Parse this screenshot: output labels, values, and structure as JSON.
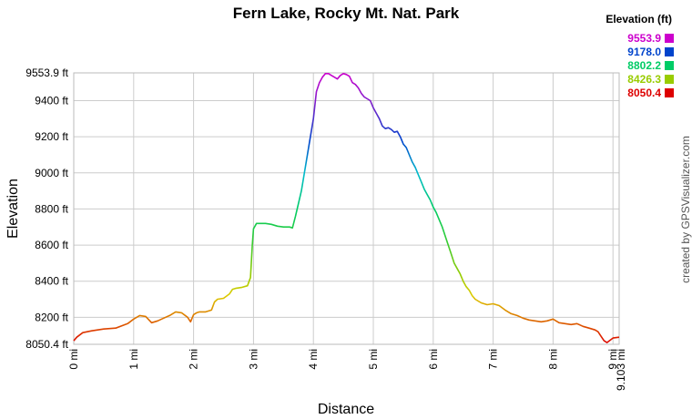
{
  "chart_data": {
    "type": "line",
    "title": "Fern Lake, Rocky Mt. Nat. Park",
    "xlabel": "Distance",
    "ylabel": "Elevation",
    "credit": "created by GPSVisualizer.com",
    "xlim": [
      0,
      9.103
    ],
    "ylim": [
      8050.4,
      9553.9
    ],
    "x_ticks": [
      {
        "value": 0,
        "label": "0 mi"
      },
      {
        "value": 1,
        "label": "1 mi"
      },
      {
        "value": 2,
        "label": "2 mi"
      },
      {
        "value": 3,
        "label": "3 mi"
      },
      {
        "value": 4,
        "label": "4 mi"
      },
      {
        "value": 5,
        "label": "5 mi"
      },
      {
        "value": 6,
        "label": "6 mi"
      },
      {
        "value": 7,
        "label": "7 mi"
      },
      {
        "value": 8,
        "label": "8 mi"
      },
      {
        "value": 9,
        "label": "9 mi"
      },
      {
        "value": 9.103,
        "label": "9.103 mi"
      }
    ],
    "y_ticks": [
      {
        "value": 8050.4,
        "label": "8050.4 ft"
      },
      {
        "value": 8200,
        "label": "8200 ft"
      },
      {
        "value": 8400,
        "label": "8400 ft"
      },
      {
        "value": 8600,
        "label": "8600 ft"
      },
      {
        "value": 8800,
        "label": "8800 ft"
      },
      {
        "value": 9000,
        "label": "9000 ft"
      },
      {
        "value": 9200,
        "label": "9200 ft"
      },
      {
        "value": 9400,
        "label": "9400 ft"
      },
      {
        "value": 9553.9,
        "label": "9553.9 ft"
      }
    ],
    "grid": true,
    "legend": {
      "title": "Elevation (ft)",
      "placement": "top-right",
      "entries": [
        {
          "label": "9553.9",
          "color": "#cc00cc"
        },
        {
          "label": "9178.0",
          "color": "#0044cc"
        },
        {
          "label": "8802.2",
          "color": "#00cc66"
        },
        {
          "label": "8426.3",
          "color": "#99cc00"
        },
        {
          "label": "8050.4",
          "color": "#dd0000"
        }
      ]
    },
    "series": [
      {
        "x": [
          0,
          0.05,
          0.15,
          0.3,
          0.5,
          0.7,
          0.9,
          1.0,
          1.1,
          1.2,
          1.3,
          1.4,
          1.5,
          1.6,
          1.7,
          1.8,
          1.9,
          1.95,
          2.0,
          2.05,
          2.1,
          2.2,
          2.3,
          2.35,
          2.4,
          2.5,
          2.6,
          2.65,
          2.7,
          2.8,
          2.9,
          2.95,
          2.98,
          3.0,
          3.05,
          3.1,
          3.2,
          3.3,
          3.4,
          3.5,
          3.6,
          3.65,
          3.7,
          3.8,
          3.9,
          4.0,
          4.05,
          4.1,
          4.15,
          4.2,
          4.25,
          4.3,
          4.35,
          4.4,
          4.45,
          4.5,
          4.55,
          4.6,
          4.65,
          4.7,
          4.75,
          4.8,
          4.85,
          4.9,
          4.95,
          5.0,
          5.05,
          5.1,
          5.15,
          5.2,
          5.25,
          5.3,
          5.35,
          5.4,
          5.45,
          5.5,
          5.55,
          5.6,
          5.65,
          5.7,
          5.75,
          5.8,
          5.85,
          5.9,
          5.95,
          6.0,
          6.05,
          6.1,
          6.15,
          6.2,
          6.25,
          6.3,
          6.35,
          6.4,
          6.45,
          6.5,
          6.55,
          6.6,
          6.65,
          6.7,
          6.8,
          6.9,
          7.0,
          7.1,
          7.2,
          7.3,
          7.4,
          7.5,
          7.6,
          7.7,
          7.8,
          7.9,
          8.0,
          8.1,
          8.2,
          8.3,
          8.4,
          8.5,
          8.6,
          8.7,
          8.75,
          8.8,
          8.85,
          8.9,
          9.0,
          9.103
        ],
        "y": [
          8070,
          8090,
          8115,
          8125,
          8135,
          8140,
          8165,
          8190,
          8210,
          8205,
          8170,
          8180,
          8195,
          8210,
          8230,
          8225,
          8200,
          8175,
          8215,
          8225,
          8230,
          8230,
          8240,
          8285,
          8300,
          8305,
          8330,
          8355,
          8360,
          8365,
          8375,
          8420,
          8600,
          8690,
          8720,
          8720,
          8720,
          8715,
          8705,
          8700,
          8700,
          8695,
          8760,
          8900,
          9100,
          9300,
          9450,
          9500,
          9530,
          9550,
          9550,
          9540,
          9530,
          9520,
          9540,
          9550,
          9545,
          9535,
          9500,
          9490,
          9470,
          9440,
          9420,
          9410,
          9400,
          9360,
          9330,
          9300,
          9260,
          9245,
          9250,
          9240,
          9225,
          9230,
          9200,
          9160,
          9140,
          9100,
          9060,
          9030,
          8990,
          8950,
          8910,
          8880,
          8850,
          8810,
          8780,
          8740,
          8700,
          8650,
          8600,
          8550,
          8500,
          8470,
          8440,
          8400,
          8370,
          8350,
          8320,
          8300,
          8280,
          8270,
          8275,
          8265,
          8240,
          8220,
          8210,
          8195,
          8185,
          8180,
          8175,
          8180,
          8190,
          8170,
          8165,
          8160,
          8165,
          8150,
          8140,
          8130,
          8120,
          8095,
          8070,
          8060,
          8085,
          8090
        ]
      }
    ]
  }
}
